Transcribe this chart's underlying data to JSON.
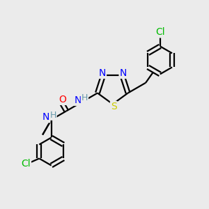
{
  "background_color": "#ebebeb",
  "bond_color": "#000000",
  "atom_colors": {
    "N": "#0000ff",
    "S": "#cccc00",
    "O": "#ff0000",
    "Cl": "#00bb00",
    "H": "#6699aa",
    "C": "#000000"
  },
  "font_size": 10,
  "figsize": [
    3.0,
    3.0
  ],
  "dpi": 100
}
